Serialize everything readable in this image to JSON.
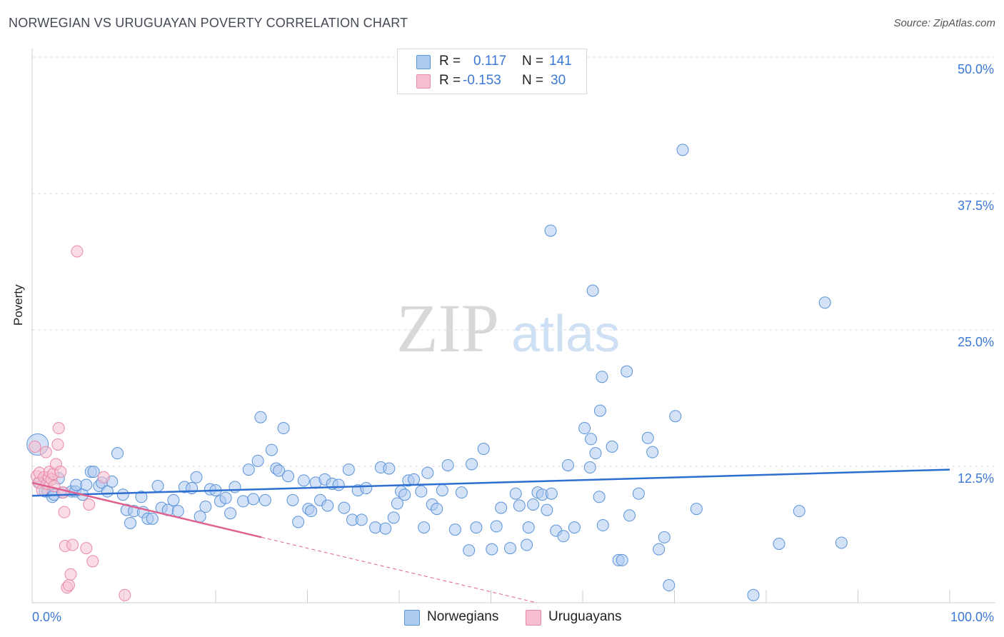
{
  "title": "NORWEGIAN VS URUGUAYAN POVERTY CORRELATION CHART",
  "source": "Source: ZipAtlas.com",
  "watermark": {
    "zip": "ZIP",
    "atlas": "atlas"
  },
  "legend": {
    "rows": [
      {
        "r_label": "R =",
        "r_value": "0.117",
        "n_label": "N =",
        "n_value": "141"
      },
      {
        "r_label": "R =",
        "r_value": "-0.153",
        "n_label": "N =",
        "n_value": "30"
      }
    ]
  },
  "bottom_legend": {
    "norwegians": "Norwegians",
    "uruguayans": "Uruguayans"
  },
  "colors": {
    "blue_fill": "#aecbf0",
    "blue_stroke": "#5b93d8",
    "blue_line": "#2e6fd1",
    "pink_fill": "#f6bfd0",
    "pink_stroke": "#e889a9",
    "pink_line": "#e0608e",
    "tick_label": "#3a78d4",
    "grid": "#dddddd"
  },
  "chart_data": {
    "type": "scatter",
    "title": "NORWEGIAN VS URUGUAYAN POVERTY CORRELATION CHART",
    "xlabel": "",
    "ylabel": "Poverty",
    "xlim": [
      0,
      100
    ],
    "ylim": [
      0,
      50
    ],
    "x_tick_labels": [
      "0.0%",
      "100.0%"
    ],
    "y_ticks": [
      12.5,
      25.0,
      37.5,
      50.0
    ],
    "y_tick_labels": [
      "12.5%",
      "25.0%",
      "37.5%",
      "50.0%"
    ],
    "grid": true,
    "series": [
      {
        "name": "Norwegians",
        "r": 0.117,
        "n": 141,
        "trend": {
          "x": [
            0,
            100
          ],
          "y": [
            9.8,
            12.2
          ]
        },
        "points": [
          [
            0.6,
            14.5
          ],
          [
            0.8,
            11.0
          ],
          [
            1.4,
            10.2
          ],
          [
            1.7,
            10.2
          ],
          [
            2.2,
            9.7
          ],
          [
            2.4,
            9.9
          ],
          [
            2.9,
            11.4
          ],
          [
            3.3,
            10.1
          ],
          [
            4.3,
            10.2
          ],
          [
            4.7,
            10.2
          ],
          [
            4.8,
            10.8
          ],
          [
            5.5,
            9.9
          ],
          [
            5.9,
            10.8
          ],
          [
            6.4,
            12.0
          ],
          [
            6.7,
            12.0
          ],
          [
            7.3,
            10.7
          ],
          [
            7.6,
            11.0
          ],
          [
            8.2,
            10.2
          ],
          [
            8.7,
            11.1
          ],
          [
            9.3,
            13.7
          ],
          [
            9.9,
            9.9
          ],
          [
            10.3,
            8.5
          ],
          [
            10.7,
            7.3
          ],
          [
            11.1,
            8.4
          ],
          [
            11.9,
            9.7
          ],
          [
            12.1,
            8.3
          ],
          [
            12.6,
            7.7
          ],
          [
            13.1,
            7.7
          ],
          [
            13.7,
            10.7
          ],
          [
            14.1,
            8.7
          ],
          [
            14.8,
            8.5
          ],
          [
            15.4,
            9.4
          ],
          [
            15.9,
            8.4
          ],
          [
            16.6,
            10.6
          ],
          [
            17.4,
            10.5
          ],
          [
            17.9,
            11.5
          ],
          [
            18.3,
            7.9
          ],
          [
            18.9,
            8.8
          ],
          [
            19.4,
            10.4
          ],
          [
            20.0,
            10.3
          ],
          [
            20.5,
            9.3
          ],
          [
            21.1,
            9.6
          ],
          [
            21.6,
            8.2
          ],
          [
            22.1,
            10.6
          ],
          [
            23.0,
            9.3
          ],
          [
            23.6,
            12.2
          ],
          [
            24.1,
            9.5
          ],
          [
            24.6,
            13.0
          ],
          [
            24.9,
            17.0
          ],
          [
            25.4,
            9.4
          ],
          [
            26.1,
            14.0
          ],
          [
            26.6,
            12.3
          ],
          [
            26.9,
            12.1
          ],
          [
            27.4,
            16.0
          ],
          [
            27.9,
            11.6
          ],
          [
            28.4,
            9.4
          ],
          [
            29.0,
            7.4
          ],
          [
            29.6,
            11.2
          ],
          [
            30.1,
            8.6
          ],
          [
            30.4,
            8.4
          ],
          [
            30.9,
            11.0
          ],
          [
            31.4,
            9.4
          ],
          [
            31.9,
            11.3
          ],
          [
            32.2,
            8.9
          ],
          [
            32.7,
            10.9
          ],
          [
            33.4,
            10.8
          ],
          [
            34.0,
            8.7
          ],
          [
            34.5,
            12.2
          ],
          [
            34.9,
            7.6
          ],
          [
            35.5,
            10.3
          ],
          [
            35.9,
            7.6
          ],
          [
            36.4,
            10.5
          ],
          [
            37.4,
            6.9
          ],
          [
            38.0,
            12.4
          ],
          [
            38.5,
            6.8
          ],
          [
            38.9,
            12.3
          ],
          [
            39.4,
            7.8
          ],
          [
            39.8,
            9.1
          ],
          [
            40.2,
            10.2
          ],
          [
            40.6,
            9.9
          ],
          [
            41.0,
            11.2
          ],
          [
            41.6,
            11.3
          ],
          [
            42.4,
            10.2
          ],
          [
            42.7,
            6.9
          ],
          [
            43.1,
            11.9
          ],
          [
            43.6,
            9.0
          ],
          [
            44.1,
            8.6
          ],
          [
            44.7,
            10.3
          ],
          [
            45.3,
            12.6
          ],
          [
            46.1,
            6.7
          ],
          [
            46.8,
            10.1
          ],
          [
            47.6,
            4.8
          ],
          [
            47.9,
            12.7
          ],
          [
            48.4,
            6.9
          ],
          [
            49.2,
            14.1
          ],
          [
            50.1,
            4.9
          ],
          [
            50.6,
            7.0
          ],
          [
            51.1,
            8.7
          ],
          [
            52.1,
            5.0
          ],
          [
            52.7,
            10.0
          ],
          [
            53.1,
            8.9
          ],
          [
            53.9,
            5.3
          ],
          [
            54.1,
            6.9
          ],
          [
            54.6,
            9.0
          ],
          [
            55.1,
            10.1
          ],
          [
            55.6,
            9.9
          ],
          [
            56.1,
            8.5
          ],
          [
            56.6,
            10.0
          ],
          [
            57.1,
            6.6
          ],
          [
            57.9,
            6.1
          ],
          [
            58.4,
            12.6
          ],
          [
            59.1,
            6.9
          ],
          [
            60.2,
            16.0
          ],
          [
            60.9,
            15.0
          ],
          [
            61.4,
            13.7
          ],
          [
            61.9,
            17.6
          ],
          [
            62.2,
            7.1
          ],
          [
            63.2,
            14.3
          ],
          [
            63.9,
            3.9
          ],
          [
            64.3,
            3.9
          ],
          [
            64.8,
            21.2
          ],
          [
            65.1,
            8.0
          ],
          [
            66.1,
            10.0
          ],
          [
            67.1,
            15.1
          ],
          [
            67.6,
            13.8
          ],
          [
            68.3,
            4.9
          ],
          [
            68.9,
            6.0
          ],
          [
            69.4,
            1.6
          ],
          [
            70.1,
            17.1
          ],
          [
            70.9,
            41.5
          ],
          [
            72.4,
            8.6
          ],
          [
            78.6,
            0.7
          ],
          [
            81.4,
            5.4
          ],
          [
            83.6,
            8.4
          ],
          [
            86.4,
            27.5
          ],
          [
            88.2,
            5.5
          ],
          [
            56.5,
            34.1
          ],
          [
            61.1,
            28.6
          ],
          [
            62.1,
            20.7
          ],
          [
            60.8,
            12.4
          ],
          [
            61.8,
            9.7
          ]
        ]
      },
      {
        "name": "Uruguayans",
        "r": -0.153,
        "n": 30,
        "trend": {
          "x": [
            0,
            25
          ],
          "y": [
            11.0,
            6.0
          ]
        },
        "trend_dashed": {
          "x": [
            25,
            55
          ],
          "y": [
            6.0,
            0.0
          ]
        },
        "points": [
          [
            0.3,
            14.3
          ],
          [
            0.5,
            11.6
          ],
          [
            0.7,
            11.0
          ],
          [
            0.8,
            11.9
          ],
          [
            1.1,
            10.3
          ],
          [
            1.3,
            11.5
          ],
          [
            1.5,
            13.8
          ],
          [
            1.6,
            10.9
          ],
          [
            1.8,
            11.5
          ],
          [
            1.9,
            12.0
          ],
          [
            2.1,
            11.3
          ],
          [
            2.3,
            11.8
          ],
          [
            2.4,
            10.7
          ],
          [
            2.6,
            12.7
          ],
          [
            2.8,
            14.5
          ],
          [
            2.9,
            16.0
          ],
          [
            3.1,
            12.0
          ],
          [
            3.4,
            10.1
          ],
          [
            3.5,
            8.3
          ],
          [
            3.6,
            5.2
          ],
          [
            3.8,
            1.4
          ],
          [
            4.0,
            1.6
          ],
          [
            4.2,
            2.6
          ],
          [
            4.4,
            5.3
          ],
          [
            4.9,
            32.2
          ],
          [
            5.9,
            5.0
          ],
          [
            6.2,
            9.0
          ],
          [
            6.6,
            3.8
          ],
          [
            7.8,
            11.5
          ],
          [
            10.1,
            0.7
          ]
        ]
      }
    ]
  }
}
